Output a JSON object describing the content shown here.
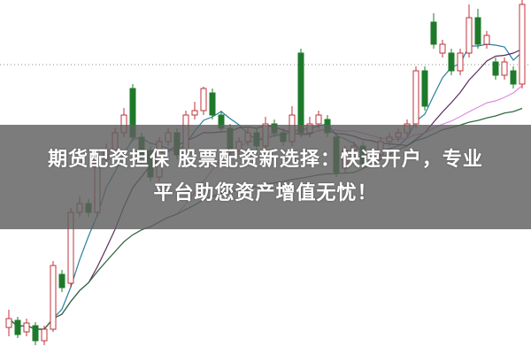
{
  "banner": {
    "line1": "期货配资担保 股票配资新选择：快速开户，专业",
    "line2": "平台助您资产增值无忧！"
  },
  "chart_data": {
    "type": "candlestick",
    "title": "",
    "xlabel": "",
    "ylabel": "",
    "grid": "single dotted horizontal line",
    "up_color": "#c0303a",
    "down_color": "#1e7a2a",
    "ma_colors": [
      "#2a7fa0",
      "#5a2c5a",
      "#e08ae0",
      "#2e6b3e"
    ],
    "ma_periods": [
      5,
      10,
      20,
      40
    ],
    "candles": [
      [
        30,
        50,
        20,
        40
      ],
      [
        38,
        42,
        18,
        22
      ],
      [
        25,
        40,
        20,
        35
      ],
      [
        32,
        36,
        10,
        15
      ],
      [
        15,
        32,
        10,
        28
      ],
      [
        28,
        105,
        25,
        100
      ],
      [
        90,
        95,
        70,
        75
      ],
      [
        80,
        165,
        75,
        160
      ],
      [
        160,
        178,
        155,
        170
      ],
      [
        170,
        175,
        155,
        160
      ],
      [
        160,
        228,
        155,
        220
      ],
      [
        220,
        238,
        215,
        230
      ],
      [
        230,
        256,
        225,
        250
      ],
      [
        250,
        278,
        245,
        270
      ],
      [
        300,
        305,
        240,
        245
      ],
      [
        245,
        250,
        220,
        225
      ],
      [
        230,
        235,
        195,
        200
      ],
      [
        200,
        245,
        195,
        240
      ],
      [
        240,
        255,
        235,
        250
      ],
      [
        250,
        255,
        220,
        225
      ],
      [
        225,
        275,
        220,
        270
      ],
      [
        270,
        285,
        265,
        275
      ],
      [
        275,
        302,
        270,
        300
      ],
      [
        295,
        300,
        265,
        270
      ],
      [
        270,
        275,
        250,
        255
      ],
      [
        255,
        260,
        225,
        230
      ],
      [
        230,
        245,
        225,
        240
      ],
      [
        240,
        255,
        235,
        250
      ],
      [
        250,
        255,
        230,
        235
      ],
      [
        235,
        268,
        230,
        260
      ],
      [
        260,
        265,
        245,
        250
      ],
      [
        250,
        255,
        235,
        240
      ],
      [
        240,
        280,
        235,
        270
      ],
      [
        340,
        345,
        245,
        250
      ],
      [
        250,
        268,
        245,
        260
      ],
      [
        260,
        275,
        255,
        270
      ],
      [
        265,
        270,
        245,
        250
      ],
      [
        245,
        250,
        200,
        205
      ],
      [
        210,
        235,
        205,
        230
      ],
      [
        230,
        240,
        225,
        235
      ],
      [
        235,
        240,
        210,
        215
      ],
      [
        220,
        230,
        215,
        225
      ],
      [
        225,
        245,
        220,
        240
      ],
      [
        240,
        250,
        235,
        245
      ],
      [
        245,
        255,
        240,
        250
      ],
      [
        250,
        265,
        245,
        260
      ],
      [
        260,
        325,
        255,
        320
      ],
      [
        320,
        325,
        275,
        280
      ],
      [
        375,
        385,
        345,
        350
      ],
      [
        340,
        355,
        335,
        350
      ],
      [
        340,
        345,
        315,
        320
      ],
      [
        320,
        345,
        315,
        340
      ],
      [
        340,
        395,
        335,
        380
      ],
      [
        380,
        390,
        345,
        350
      ],
      [
        350,
        365,
        345,
        360
      ],
      [
        330,
        335,
        310,
        315
      ],
      [
        315,
        335,
        310,
        330
      ],
      [
        320,
        325,
        300,
        305
      ],
      [
        305,
        400,
        300,
        395
      ]
    ]
  }
}
